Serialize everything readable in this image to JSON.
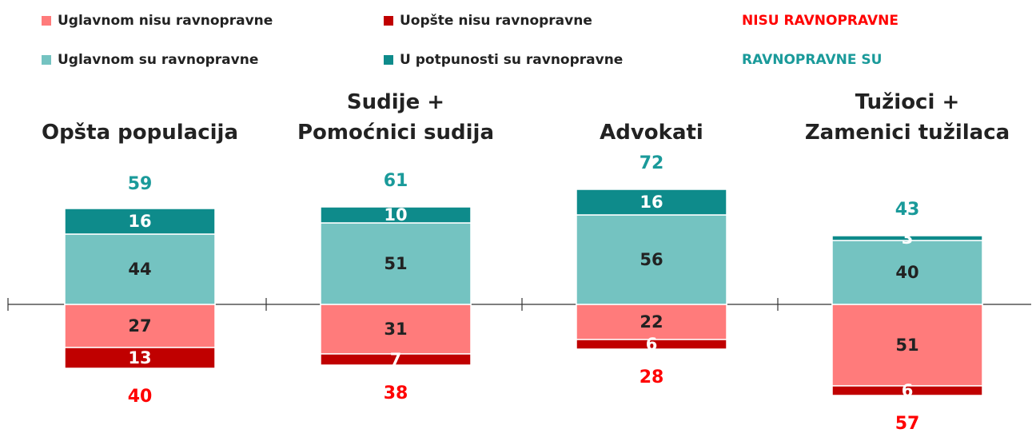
{
  "chart_data": {
    "type": "diverging-stacked-bar",
    "categories": [
      "Opšta populacija",
      "Sudije + Pomoćnici sudija",
      "Advokati",
      "Tužioci + Zamenici tužilaca"
    ],
    "series": [
      {
        "name": "Uglavnom nisu ravnopravne",
        "color": "#ff7b7b",
        "side": "negative",
        "values": [
          27,
          31,
          22,
          51
        ]
      },
      {
        "name": "Uopšte nisu ravnopravne",
        "color": "#c00000",
        "side": "negative",
        "values": [
          13,
          7,
          6,
          6
        ]
      },
      {
        "name": "Uglavnom su ravnopravne",
        "color": "#74c3c1",
        "side": "positive",
        "values": [
          44,
          51,
          56,
          40
        ]
      },
      {
        "name": "U potpunosti su ravnopravne",
        "color": "#0e8b8b",
        "side": "positive",
        "values": [
          16,
          10,
          16,
          3
        ]
      }
    ],
    "totals": [
      {
        "name": "NISU RAVNOPRAVNE",
        "color": "#ff0000",
        "side": "negative",
        "values": [
          40,
          38,
          28,
          57
        ]
      },
      {
        "name": "RAVNOPRAVNE SU",
        "color": "#1a9a9a",
        "side": "positive",
        "values": [
          59,
          61,
          72,
          43
        ]
      }
    ]
  }
}
